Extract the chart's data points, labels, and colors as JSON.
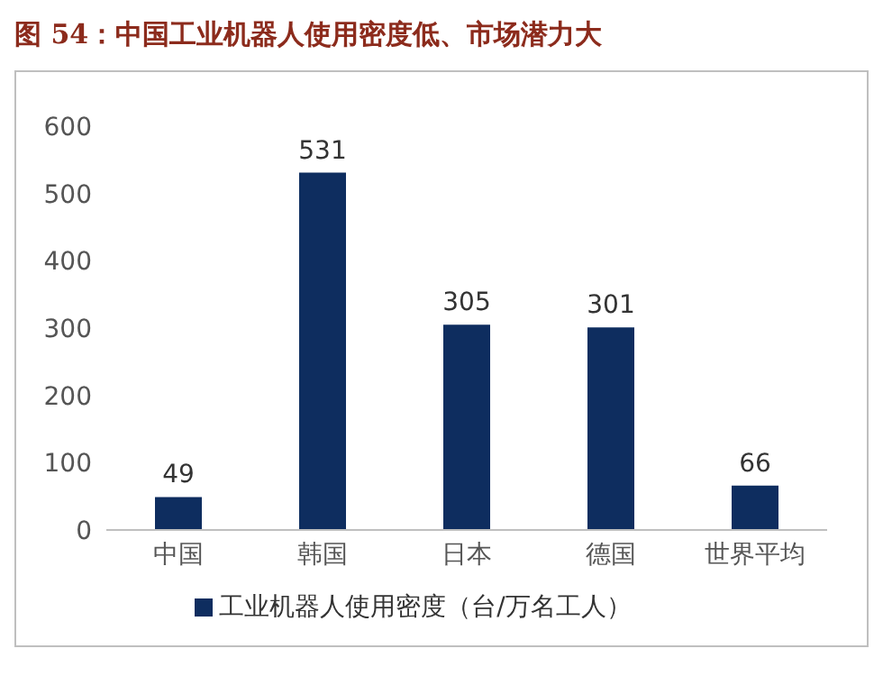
{
  "chart_data": {
    "type": "bar",
    "title": "图 54：中国工业机器人使用密度低、市场潜力大",
    "categories": [
      "中国",
      "韩国",
      "日本",
      "德国",
      "世界平均"
    ],
    "series": [
      {
        "name": "工业机器人使用密度（台/万名工人）",
        "color": "#0e2d5f",
        "values": [
          49,
          531,
          305,
          301,
          66
        ]
      }
    ],
    "ylim": [
      0,
      600
    ],
    "yticks": [
      0,
      100,
      200,
      300,
      400,
      500,
      600
    ],
    "grid": false,
    "legend": "bottom",
    "data_labels": true
  }
}
